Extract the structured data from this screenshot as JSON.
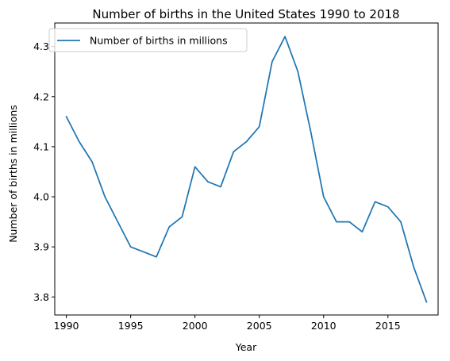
{
  "chart_data": {
    "type": "line",
    "title": "Number of births in the United States 1990 to 2018",
    "xlabel": "Year",
    "ylabel": "Number of births in millions",
    "x_ticks": [
      "1990",
      "1995",
      "2000",
      "2005",
      "2010",
      "2015"
    ],
    "y_ticks": [
      "3.8",
      "3.9",
      "4.0",
      "4.1",
      "4.2",
      "4.3"
    ],
    "xlim": [
      1989.1,
      2018.9
    ],
    "ylim": [
      3.764,
      4.347
    ],
    "grid": false,
    "legend_position": "upper-left",
    "series": [
      {
        "name": "Number of births in millions",
        "color": "#1f77b4",
        "x": [
          1990,
          1991,
          1992,
          1993,
          1994,
          1995,
          1996,
          1997,
          1998,
          1999,
          2000,
          2001,
          2002,
          2003,
          2004,
          2005,
          2006,
          2007,
          2008,
          2009,
          2010,
          2011,
          2012,
          2013,
          2014,
          2015,
          2016,
          2017,
          2018
        ],
        "y": [
          4.16,
          4.11,
          4.07,
          4.0,
          3.95,
          3.9,
          3.89,
          3.88,
          3.94,
          3.96,
          4.06,
          4.03,
          4.02,
          4.09,
          4.11,
          4.14,
          4.27,
          4.32,
          4.25,
          4.13,
          4.0,
          3.95,
          3.95,
          3.93,
          3.99,
          3.98,
          3.95,
          3.86,
          3.79
        ]
      }
    ]
  }
}
